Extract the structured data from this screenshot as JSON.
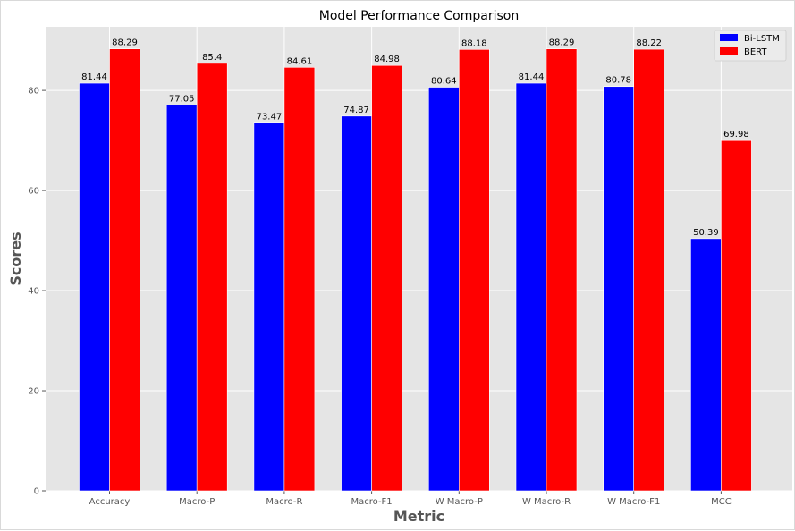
{
  "chart_data": {
    "type": "bar",
    "title": "Model Performance Comparison",
    "xlabel": "Metric",
    "ylabel": "Scores",
    "categories": [
      "Accuracy",
      "Macro-P",
      "Macro-R",
      "Macro-F1",
      "W Macro-P",
      "W Macro-R",
      "W Macro-F1",
      "MCC"
    ],
    "series": [
      {
        "name": "Bi-LSTM",
        "color": "#0000ff",
        "values": [
          81.44,
          77.05,
          73.47,
          74.87,
          80.64,
          81.44,
          80.78,
          50.39
        ],
        "labels": [
          "81.44",
          "77.05",
          "73.47",
          "74.87",
          "80.64",
          "81.44",
          "80.78",
          "50.39"
        ]
      },
      {
        "name": "BERT",
        "color": "#ff0000",
        "values": [
          88.29,
          85.4,
          84.61,
          84.98,
          88.18,
          88.29,
          88.22,
          69.98
        ],
        "labels": [
          "88.29",
          "85.4",
          "84.61",
          "84.98",
          "88.18",
          "88.29",
          "88.22",
          "69.98"
        ]
      }
    ],
    "ylim": [
      0,
      92.7
    ],
    "yticks": [
      "0",
      "20",
      "40",
      "60",
      "80"
    ],
    "grid": true,
    "legend": "top-right",
    "background": "#e5e5e5",
    "gridColor": "#ffffff"
  }
}
